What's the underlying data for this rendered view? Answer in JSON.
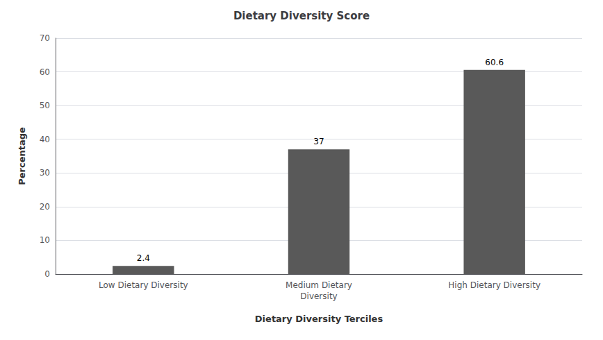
{
  "chart_data": {
    "type": "bar",
    "title": "Dietary Diversity Score",
    "xlabel": "Dietary Diversity Terciles",
    "ylabel": "Percentage",
    "categories": [
      "Low Dietary Diversity",
      "Medium Dietary\nDiversity",
      "High Dietary Diversity"
    ],
    "values": [
      2.4,
      37,
      60.6
    ],
    "color": "#595959",
    "ylim": [
      0,
      70
    ],
    "yticks": [
      0,
      10,
      20,
      30,
      40,
      50,
      60,
      70
    ],
    "grid": true,
    "data_labels": true
  }
}
